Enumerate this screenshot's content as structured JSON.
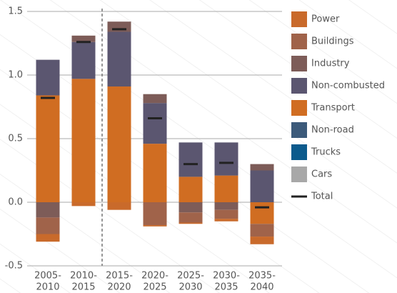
{
  "chart_data": {
    "type": "stacked_bar",
    "categories": [
      [
        "2005-",
        "2010"
      ],
      [
        "2010-",
        "2015"
      ],
      [
        "2015-",
        "2020"
      ],
      [
        "2020-",
        "2025"
      ],
      [
        "2025-",
        "2030"
      ],
      [
        "2030-",
        "2035"
      ],
      [
        "2035-",
        "2040"
      ]
    ],
    "ylim": [
      -0.5,
      1.5
    ],
    "yticks": [
      {
        "value": -0.5,
        "label": "-0.5"
      },
      {
        "value": 0,
        "label": "0.0"
      },
      0.5,
      {
        "value": 1,
        "label": "1.0"
      },
      {
        "value": 1.5,
        "label": "1.5"
      }
    ],
    "grid": true,
    "legend": "right",
    "series": [
      {
        "name": "Power",
        "color": "#c96a2b",
        "values": [
          -0.06,
          -0.03,
          -0.06,
          -0.01,
          -0.01,
          -0.02,
          -0.06
        ]
      },
      {
        "name": "Buildings",
        "color": "#a0634a",
        "values": [
          -0.13,
          0,
          0,
          -0.18,
          -0.08,
          -0.07,
          -0.1
        ]
      },
      {
        "name": "Industry",
        "color": "#7d5c58",
        "values": [
          -0.12,
          0.05,
          0.08,
          0.07,
          -0.08,
          -0.06,
          0.05
        ]
      },
      {
        "name": "Non-combusted",
        "color": "#5b5670",
        "values": [
          0.28,
          0.29,
          0.43,
          0.32,
          0.27,
          0.26,
          0.25
        ]
      },
      {
        "name": "Transport",
        "color": "#d06d22",
        "values": [
          0.84,
          0.97,
          0.91,
          0.46,
          0.2,
          0.21,
          -0.17
        ]
      },
      {
        "name": "Non-road",
        "color": "#3c5a7a",
        "values": [
          0,
          0,
          0,
          0,
          0,
          0,
          0
        ]
      },
      {
        "name": "Trucks",
        "color": "#0b5a8c",
        "values": [
          0,
          0,
          0,
          0,
          0,
          0,
          0
        ]
      },
      {
        "name": "Cars",
        "color": "#a8a8a8",
        "values": [
          0,
          0,
          0,
          0,
          0,
          0,
          0
        ]
      }
    ],
    "total": {
      "name": "Total",
      "color": "#222222",
      "values": [
        0.82,
        1.26,
        1.36,
        0.66,
        0.3,
        0.31,
        -0.04
      ]
    }
  }
}
